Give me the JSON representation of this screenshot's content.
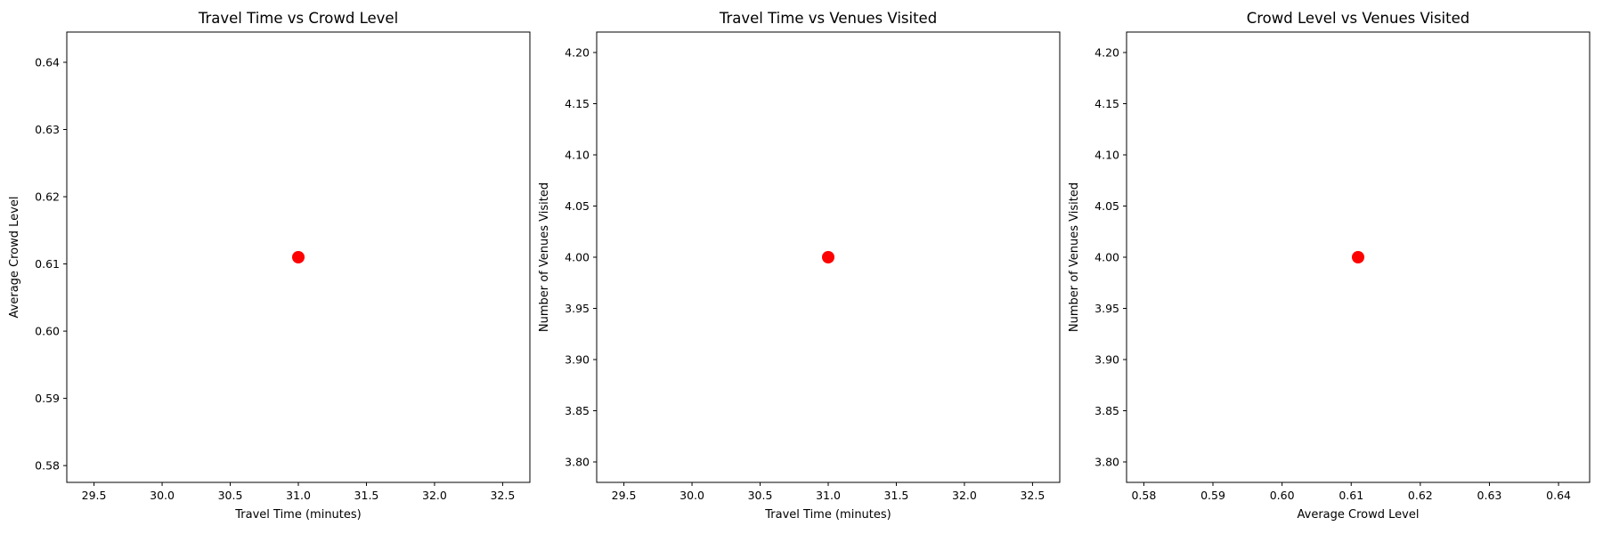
{
  "chart_data": [
    {
      "type": "scatter",
      "title": "Travel Time vs Crowd Level",
      "xlabel": "Travel Time (minutes)",
      "ylabel": "Average Crowd Level",
      "xlim": [
        29.3,
        32.7
      ],
      "ylim": [
        0.5775,
        0.6445
      ],
      "xticks": [
        "29.5",
        "30.0",
        "30.5",
        "31.0",
        "31.5",
        "32.0",
        "32.5"
      ],
      "yticks": [
        "0.58",
        "0.59",
        "0.60",
        "0.61",
        "0.62",
        "0.63",
        "0.64"
      ],
      "points": [
        {
          "x": 31.0,
          "y": 0.611
        }
      ],
      "marker_color": "#ff0000",
      "grid": false
    },
    {
      "type": "scatter",
      "title": "Travel Time vs Venues Visited",
      "xlabel": "Travel Time (minutes)",
      "ylabel": "Number of Venues Visited",
      "xlim": [
        29.3,
        32.7
      ],
      "ylim": [
        3.78,
        4.22
      ],
      "xticks": [
        "29.5",
        "30.0",
        "30.5",
        "31.0",
        "31.5",
        "32.0",
        "32.5"
      ],
      "yticks": [
        "3.80",
        "3.85",
        "3.90",
        "3.95",
        "4.00",
        "4.05",
        "4.10",
        "4.15",
        "4.20"
      ],
      "points": [
        {
          "x": 31.0,
          "y": 4.0
        }
      ],
      "marker_color": "#ff0000",
      "grid": false
    },
    {
      "type": "scatter",
      "title": "Crowd Level vs Venues Visited",
      "xlabel": "Average Crowd Level",
      "ylabel": "Number of Venues Visited",
      "xlim": [
        0.5775,
        0.6445
      ],
      "ylim": [
        3.78,
        4.22
      ],
      "xticks": [
        "0.58",
        "0.59",
        "0.60",
        "0.61",
        "0.62",
        "0.63",
        "0.64"
      ],
      "yticks": [
        "3.80",
        "3.85",
        "3.90",
        "3.95",
        "4.00",
        "4.05",
        "4.10",
        "4.15",
        "4.20"
      ],
      "points": [
        {
          "x": 0.611,
          "y": 4.0
        }
      ],
      "marker_color": "#ff0000",
      "grid": false
    }
  ]
}
